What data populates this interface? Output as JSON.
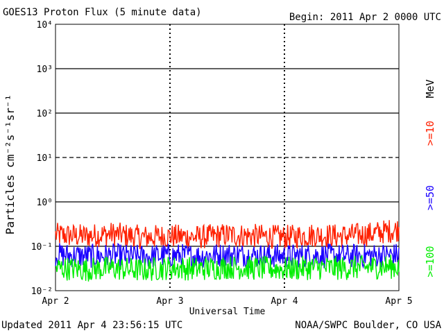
{
  "header": {
    "title": "GOES13 Proton Flux (5 minute data)",
    "begin": "Begin: 2011 Apr 2 0000 UTC"
  },
  "footer": {
    "updated": "Updated 2011 Apr  4 23:56:15 UTC",
    "source": "NOAA/SWPC Boulder, CO USA"
  },
  "colors": {
    "ge10": "#ff2000",
    "ge50": "#1a00ff",
    "ge100": "#00ee00"
  },
  "chart_data": {
    "type": "line",
    "title": "GOES13 Proton Flux (5 minute data)",
    "xlabel": "Universal Time",
    "ylabel": "Particles cm⁻²s⁻¹sr⁻¹",
    "yscale": "log",
    "ylim": [
      0.01,
      10000
    ],
    "ytick_labels": [
      "10⁻²",
      "10⁻¹",
      "10⁰",
      "10¹",
      "10²",
      "10³",
      "10⁴"
    ],
    "x_tick_labels": [
      "Apr 2",
      "Apr 3",
      "Apr 4",
      "Apr 5"
    ],
    "xlim": [
      "2011-04-02 00:00",
      "2011-04-05 00:00"
    ],
    "threshold_lines": [
      0.1,
      1,
      10,
      100,
      1000
    ],
    "unit_label": "MeV",
    "series": [
      {
        "name": ">=10",
        "color": "#ff2000",
        "x": [
          "2011-04-02 00:00",
          "2011-04-02 06:00",
          "2011-04-02 12:00",
          "2011-04-02 18:00",
          "2011-04-03 00:00",
          "2011-04-03 06:00",
          "2011-04-03 12:00",
          "2011-04-03 18:00",
          "2011-04-04 00:00",
          "2011-04-04 06:00",
          "2011-04-04 12:00",
          "2011-04-04 18:00",
          "2011-04-05 00:00"
        ],
        "values": [
          0.18,
          0.17,
          0.19,
          0.16,
          0.17,
          0.16,
          0.18,
          0.17,
          0.16,
          0.18,
          0.17,
          0.19,
          0.24
        ]
      },
      {
        "name": ">=50",
        "color": "#1a00ff",
        "x": [
          "2011-04-02 00:00",
          "2011-04-02 06:00",
          "2011-04-02 12:00",
          "2011-04-02 18:00",
          "2011-04-03 00:00",
          "2011-04-03 06:00",
          "2011-04-03 12:00",
          "2011-04-03 18:00",
          "2011-04-04 00:00",
          "2011-04-04 06:00",
          "2011-04-04 12:00",
          "2011-04-04 18:00",
          "2011-04-05 00:00"
        ],
        "values": [
          0.065,
          0.06,
          0.062,
          0.058,
          0.063,
          0.06,
          0.065,
          0.062,
          0.06,
          0.063,
          0.06,
          0.062,
          0.064
        ]
      },
      {
        "name": ">=100",
        "color": "#00ee00",
        "x": [
          "2011-04-02 00:00",
          "2011-04-02 06:00",
          "2011-04-02 12:00",
          "2011-04-02 18:00",
          "2011-04-03 00:00",
          "2011-04-03 06:00",
          "2011-04-03 12:00",
          "2011-04-03 18:00",
          "2011-04-04 00:00",
          "2011-04-04 06:00",
          "2011-04-04 12:00",
          "2011-04-04 18:00",
          "2011-04-05 00:00"
        ],
        "values": [
          0.033,
          0.03,
          0.032,
          0.029,
          0.033,
          0.031,
          0.034,
          0.032,
          0.031,
          0.033,
          0.032,
          0.034,
          0.035
        ]
      }
    ]
  }
}
